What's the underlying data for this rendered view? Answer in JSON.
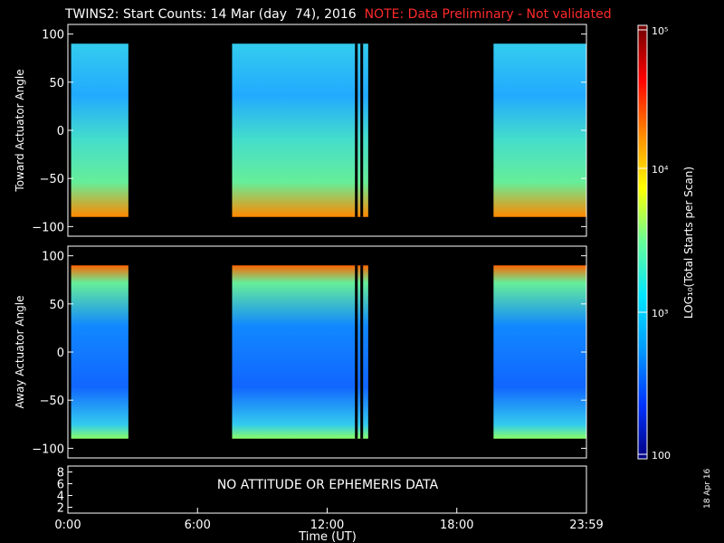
{
  "title": {
    "main": "TWINS2: Start Counts: 14 Mar (day  74), 2016",
    "note": "NOTE: Data Preliminary - Not validated"
  },
  "datestamp": "18 Apr 16",
  "no_data_message": "NO ATTITUDE OR EPHEMERIS DATA",
  "chart_data": [
    {
      "type": "heatmap",
      "name": "top-panel",
      "xlabel": "",
      "ylabel": "Toward Actuator Angle",
      "xlim": [
        "0:00",
        "23:59"
      ],
      "ylim": [
        -110,
        110
      ],
      "yticks": [
        100,
        50,
        0,
        -50,
        -100
      ],
      "data_range_y": [
        -90,
        90
      ],
      "data_intervals_hours": [
        [
          0.15,
          2.8
        ],
        [
          7.6,
          13.9
        ],
        [
          19.7,
          24.0
        ]
      ],
      "lines_hours": [
        13.35,
        13.6
      ],
      "color_scale": "log10 counts"
    },
    {
      "type": "heatmap",
      "name": "bottom-panel",
      "xlabel": "",
      "ylabel": "Away Actuator Angle",
      "xlim": [
        "0:00",
        "23:59"
      ],
      "ylim": [
        -110,
        110
      ],
      "yticks": [
        100,
        50,
        0,
        -50,
        -100
      ],
      "data_range_y": [
        -90,
        90
      ],
      "data_intervals_hours": [
        [
          0.15,
          2.8
        ],
        [
          7.6,
          13.9
        ],
        [
          19.7,
          24.0
        ]
      ],
      "lines_hours": [
        13.35,
        13.6
      ],
      "color_scale": "log10 counts"
    },
    {
      "type": "line",
      "name": "lower-panel",
      "xlabel": "Time (UT)",
      "ylabel": "",
      "yticks": [
        8,
        6,
        4,
        2
      ],
      "ylim": [
        1,
        9
      ],
      "xticks": [
        "0:00",
        "6:00",
        "12:00",
        "18:00",
        "23:59"
      ]
    }
  ],
  "colorbar": {
    "label": "LOG₁₀(Total Starts per Scan)",
    "ticks": [
      "10⁵",
      "10⁴",
      "10³",
      "100"
    ],
    "colors": [
      "#6e0000",
      "#ff0000",
      "#ff8800",
      "#ffff00",
      "#66ff99",
      "#00e6ff",
      "#0099ff",
      "#0033ff",
      "#000080"
    ]
  }
}
